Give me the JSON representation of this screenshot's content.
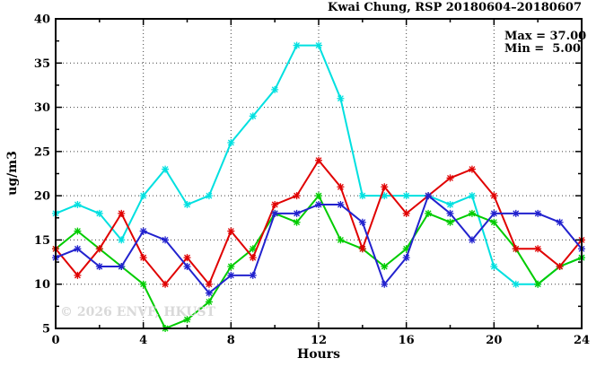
{
  "title": "Kwai Chung, RSP 20180604–20180607",
  "legend": {
    "max_label": "Max = 37.00",
    "min_label": "Min =  5.00"
  },
  "watermark": "© 2026 ENVF, HKUST",
  "chart_data": {
    "type": "line",
    "title": "Kwai Chung, RSP 20180604–20180607",
    "xlabel": "Hours",
    "ylabel": "ug/m3",
    "xlim": [
      0,
      24
    ],
    "ylim": [
      5,
      40
    ],
    "grid": true,
    "legend_position": "top-right-inside",
    "max": 37.0,
    "min": 5.0,
    "x_major_ticks": [
      0,
      4,
      8,
      12,
      16,
      20,
      24
    ],
    "x_minor_ticks": [
      2,
      6,
      10,
      14,
      18,
      22
    ],
    "y_major_ticks": [
      5,
      10,
      15,
      20,
      25,
      30,
      35,
      40
    ],
    "y_minor_ticks": [
      7.5,
      12.5,
      17.5,
      22.5,
      27.5,
      32.5,
      37.5
    ],
    "x_gridlines": [
      4,
      8,
      12,
      16,
      20
    ],
    "y_gridlines": [
      10,
      15,
      20,
      25,
      30,
      35
    ],
    "x": [
      0,
      1,
      2,
      3,
      4,
      5,
      6,
      7,
      8,
      9,
      10,
      11,
      12,
      13,
      14,
      15,
      16,
      17,
      18,
      19,
      20,
      21,
      22,
      23,
      24
    ],
    "series": [
      {
        "name": "series-cyan",
        "color": "#00E0E0",
        "values": [
          18,
          19,
          18,
          15,
          20,
          23,
          19,
          20,
          26,
          29,
          32,
          37,
          37,
          31,
          20,
          20,
          20,
          20,
          19,
          20,
          12,
          10,
          10,
          12,
          13
        ]
      },
      {
        "name": "series-green",
        "color": "#00CC00",
        "values": [
          14,
          16,
          14,
          12,
          10,
          5,
          6,
          8,
          12,
          14,
          18,
          17,
          20,
          15,
          14,
          12,
          14,
          18,
          17,
          18,
          17,
          14,
          10,
          12,
          13
        ]
      },
      {
        "name": "series-red",
        "color": "#E00000",
        "values": [
          14,
          11,
          14,
          18,
          13,
          10,
          13,
          10,
          16,
          13,
          19,
          20,
          24,
          21,
          14,
          21,
          18,
          20,
          22,
          23,
          20,
          14,
          14,
          12,
          15
        ]
      },
      {
        "name": "series-blue",
        "color": "#2222CE",
        "values": [
          13,
          14,
          12,
          12,
          16,
          15,
          12,
          9,
          11,
          11,
          18,
          18,
          19,
          19,
          17,
          10,
          13,
          20,
          18,
          15,
          18,
          18,
          18,
          17,
          14
        ]
      }
    ],
    "style": {
      "grid_color": "#404040",
      "axis_color": "#000000",
      "background": "#ffffff"
    }
  }
}
